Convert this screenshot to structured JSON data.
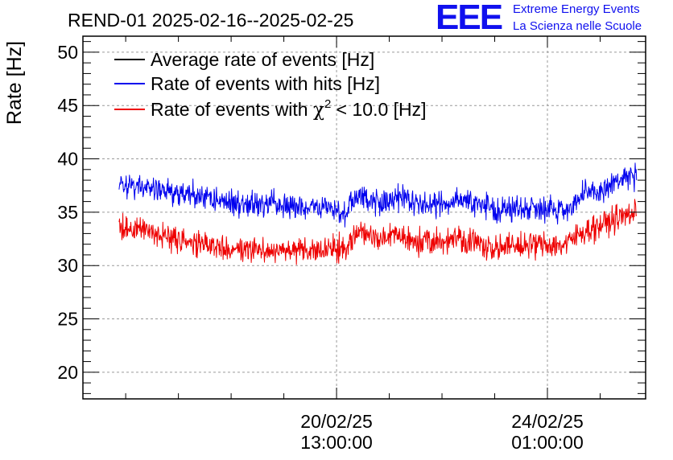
{
  "header": {
    "title": "REND-01 2025-02-16--2025-02-25",
    "logo": {
      "mark": "EEE",
      "line1": "Extreme Energy Events",
      "line2": "La Scienza nelle Scuole"
    }
  },
  "colors": {
    "average": "#000000",
    "hits": "#0000ee",
    "chi2": "#ee0000",
    "grid": "#9a9a9a",
    "logo": "#1010ee"
  },
  "chart_data": {
    "type": "line",
    "title": "REND-01 2025-02-16--2025-02-25",
    "ylabel": "Rate [Hz]",
    "xlabel": "",
    "ylim": [
      17.5,
      51.5
    ],
    "yticks": [
      20,
      25,
      30,
      35,
      40,
      45,
      50
    ],
    "ytick_labels": [
      "20",
      "25",
      "30",
      "35",
      "40",
      "45",
      "50"
    ],
    "xlim_days": [
      0,
      9.34
    ],
    "xticks_days": [
      4.21,
      7.71
    ],
    "xtick_labels": [
      {
        "date": "20/02/25",
        "time": "13:00:00"
      },
      {
        "date": "24/02/25",
        "time": "01:00:00"
      }
    ],
    "grid": true,
    "legend_position": "top-left",
    "legend": [
      {
        "key": "average",
        "label": "Average rate of events [Hz]"
      },
      {
        "key": "hits",
        "label": "Rate of events with hits [Hz]"
      },
      {
        "key": "chi2",
        "label_prefix": "Rate of events with ",
        "label_symbol": "χ",
        "label_sup": "2",
        "label_suffix": " < 10.0 [Hz]"
      }
    ],
    "series": [
      {
        "name": "Rate of events with hits [Hz]",
        "key": "hits",
        "x_days": [
          0.6,
          1.0,
          1.5,
          2.0,
          2.5,
          3.0,
          3.3,
          3.6,
          4.0,
          4.3,
          4.6,
          4.9,
          5.2,
          5.5,
          5.9,
          6.2,
          6.6,
          6.9,
          7.3,
          7.6,
          8.0,
          8.3,
          8.6,
          8.9,
          9.19
        ],
        "values": [
          37.5,
          37.3,
          36.8,
          36.5,
          35.9,
          35.7,
          35.6,
          35.3,
          35.5,
          35.0,
          36.5,
          36.0,
          36.3,
          35.8,
          35.6,
          36.4,
          35.6,
          35.2,
          35.4,
          35.5,
          35.2,
          36.5,
          37.0,
          38.0,
          38.4
        ],
        "noise_amplitude": 1.1
      },
      {
        "name": "Rate of events with χ2 < 10.0 [Hz]",
        "key": "chi2",
        "x_days": [
          0.6,
          1.0,
          1.5,
          2.0,
          2.5,
          3.0,
          3.3,
          3.6,
          4.0,
          4.3,
          4.6,
          4.9,
          5.2,
          5.5,
          5.9,
          6.2,
          6.6,
          6.9,
          7.3,
          7.6,
          8.0,
          8.3,
          8.6,
          8.9,
          9.19
        ],
        "values": [
          33.6,
          33.3,
          32.5,
          31.8,
          31.7,
          31.5,
          31.4,
          31.3,
          31.6,
          31.4,
          33.2,
          32.5,
          32.8,
          32.3,
          32.1,
          32.7,
          32.0,
          31.6,
          31.9,
          32.0,
          31.9,
          33.2,
          33.8,
          34.5,
          35.0
        ],
        "noise_amplitude": 1.1
      }
    ]
  }
}
